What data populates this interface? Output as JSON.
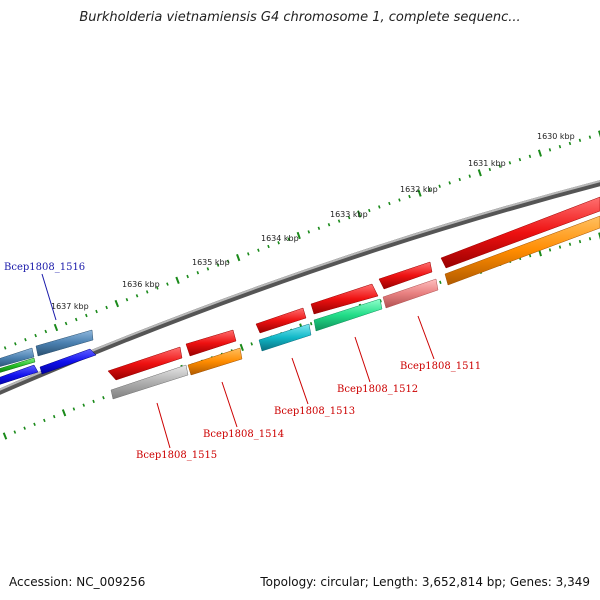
{
  "title": "Burkholderia vietnamiensis G4 chromosome 1, complete sequenc...",
  "footer": {
    "accession": "Accession: NC_009256",
    "summary": "Topology: circular; Length: 3,652,814 bp; Genes: 3,349"
  },
  "ticks": [
    "1630 kbp",
    "1631 kbp",
    "1632 kbp",
    "1633 kbp",
    "1634 kbp",
    "1635 kbp",
    "1636 kbp",
    "1637 kbp"
  ],
  "genes": [
    {
      "name": "Bcep1808_1516",
      "color": "#1a1aaa"
    },
    {
      "name": "Bcep1808_1515",
      "color": "#cc0000"
    },
    {
      "name": "Bcep1808_1514",
      "color": "#cc0000"
    },
    {
      "name": "Bcep1808_1513",
      "color": "#cc0000"
    },
    {
      "name": "Bcep1808_1512",
      "color": "#cc0000"
    },
    {
      "name": "Bcep1808_1511",
      "color": "#cc0000"
    }
  ],
  "colors": {
    "backbone": "#777777",
    "tick": "#1a8a1a",
    "red": "#ee1111",
    "orange": "#ff8c00",
    "blue": "#1111ee",
    "steel": "#4a80b0",
    "green": "#22bb22",
    "cyan": "#11b8c8",
    "spring": "#22dd88",
    "salmon": "#e88080",
    "gray": "#b0b0b0"
  }
}
